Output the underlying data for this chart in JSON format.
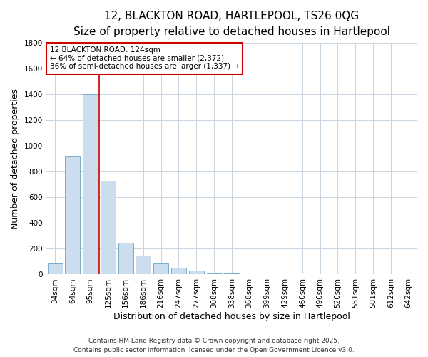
{
  "title": "12, BLACKTON ROAD, HARTLEPOOL, TS26 0QG",
  "subtitle": "Size of property relative to detached houses in Hartlepool",
  "xlabel": "Distribution of detached houses by size in Hartlepool",
  "ylabel": "Number of detached properties",
  "bar_color": "#ccdded",
  "bar_edge_color": "#7aadcc",
  "background_color": "#ffffff",
  "grid_color": "#c8d4e0",
  "categories": [
    "34sqm",
    "64sqm",
    "95sqm",
    "125sqm",
    "156sqm",
    "186sqm",
    "216sqm",
    "247sqm",
    "277sqm",
    "308sqm",
    "338sqm",
    "368sqm",
    "399sqm",
    "429sqm",
    "460sqm",
    "490sqm",
    "520sqm",
    "551sqm",
    "581sqm",
    "612sqm",
    "642sqm"
  ],
  "values": [
    85,
    920,
    1400,
    730,
    245,
    145,
    85,
    50,
    30,
    10,
    8,
    2,
    0,
    0,
    0,
    0,
    0,
    0,
    0,
    0,
    0
  ],
  "ylim": [
    0,
    1800
  ],
  "yticks": [
    0,
    200,
    400,
    600,
    800,
    1000,
    1200,
    1400,
    1600,
    1800
  ],
  "property_label": "12 BLACKTON ROAD: 124sqm",
  "annotation_line1": "← 64% of detached houses are smaller (2,372)",
  "annotation_line2": "36% of semi-detached houses are larger (1,337) →",
  "vline_color": "#cc0000",
  "vline_x": 2.5,
  "footnote1": "Contains HM Land Registry data © Crown copyright and database right 2025.",
  "footnote2": "Contains public sector information licensed under the Open Government Licence v3.0.",
  "annotation_box_color": "#ffffff",
  "annotation_box_edge_color": "#cc0000",
  "title_fontsize": 11,
  "subtitle_fontsize": 9.5,
  "axis_label_fontsize": 9,
  "tick_fontsize": 7.5,
  "annotation_fontsize": 7.5,
  "footnote_fontsize": 6.5
}
